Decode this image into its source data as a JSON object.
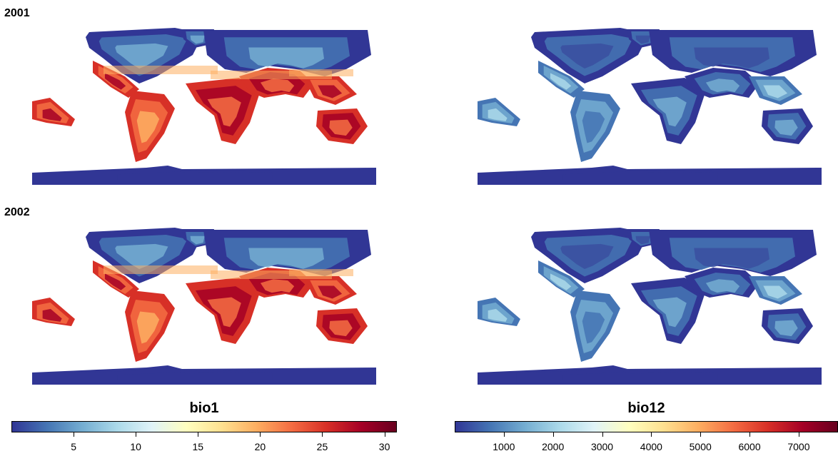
{
  "rows": [
    {
      "year": "2001"
    },
    {
      "year": "2002"
    }
  ],
  "legends": [
    {
      "title": "bio1",
      "min": 0,
      "max": 31,
      "ticks": [
        "5",
        "10",
        "15",
        "20",
        "25",
        "30"
      ],
      "tick_values": [
        5,
        10,
        15,
        20,
        25,
        30
      ]
    },
    {
      "title": "bio12",
      "min": 0,
      "max": 7800,
      "ticks": [
        "1000",
        "2000",
        "3000",
        "4000",
        "5000",
        "6000",
        "7000"
      ],
      "tick_values": [
        1000,
        2000,
        3000,
        4000,
        5000,
        6000,
        7000
      ]
    }
  ],
  "palette": [
    "#313695",
    "#4575b4",
    "#74add1",
    "#abd9e9",
    "#e0f3f8",
    "#ffffbf",
    "#fee090",
    "#fdae61",
    "#f46d43",
    "#d73027",
    "#a50026",
    "#67001f"
  ]
}
